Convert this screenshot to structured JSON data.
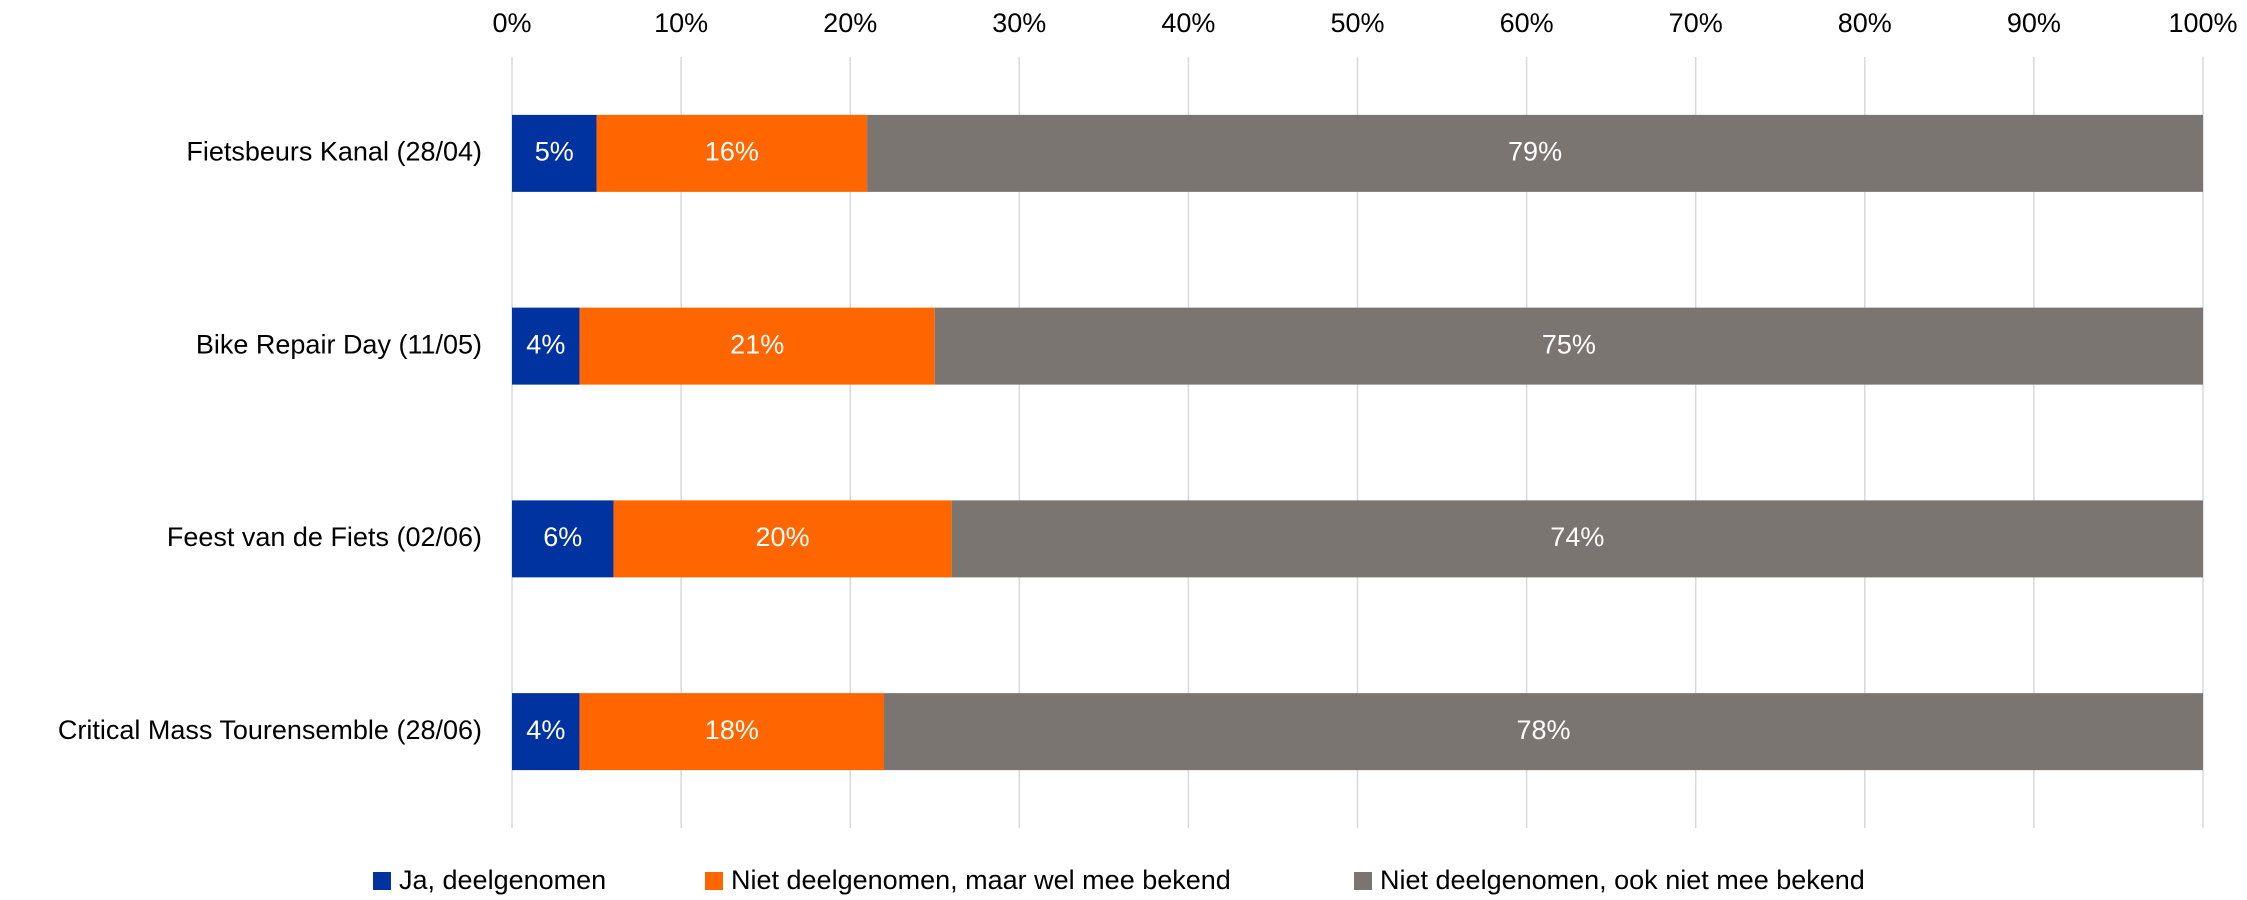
{
  "chart_data": {
    "type": "stacked_bar_horizontal",
    "categories": [
      "Fietsbeurs Kanal (28/04)",
      "Bike Repair Day (11/05)",
      "Feest van de Fiets (02/06)",
      "Critical Mass Tourensemble (28/06)"
    ],
    "series": [
      {
        "name": "Ja, deelgenomen",
        "color": "#0033a0",
        "values": [
          5,
          4,
          6,
          4
        ],
        "value_labels": [
          "5%",
          "4%",
          "6%",
          "4%"
        ]
      },
      {
        "name": "Niet deelgenomen, maar wel mee bekend",
        "color": "#ff6600",
        "values": [
          16,
          21,
          20,
          18
        ],
        "value_labels": [
          "16%",
          "21%",
          "20%",
          "18%"
        ]
      },
      {
        "name": "Niet deelgenomen, ook niet mee bekend",
        "color": "#7a7570",
        "values": [
          79,
          75,
          74,
          78
        ],
        "value_labels": [
          "79%",
          "75%",
          "74%",
          "78%"
        ]
      }
    ],
    "xlim": [
      0,
      100
    ],
    "xticks": [
      {
        "value": 0,
        "label": "0%"
      },
      {
        "value": 10,
        "label": "10%"
      },
      {
        "value": 20,
        "label": "20%"
      },
      {
        "value": 30,
        "label": "30%"
      },
      {
        "value": 40,
        "label": "40%"
      },
      {
        "value": 50,
        "label": "50%"
      },
      {
        "value": 60,
        "label": "60%"
      },
      {
        "value": 70,
        "label": "70%"
      },
      {
        "value": 80,
        "label": "80%"
      },
      {
        "value": 90,
        "label": "90%"
      },
      {
        "value": 100,
        "label": "100%"
      }
    ],
    "grid": true,
    "legend": "bottom"
  }
}
